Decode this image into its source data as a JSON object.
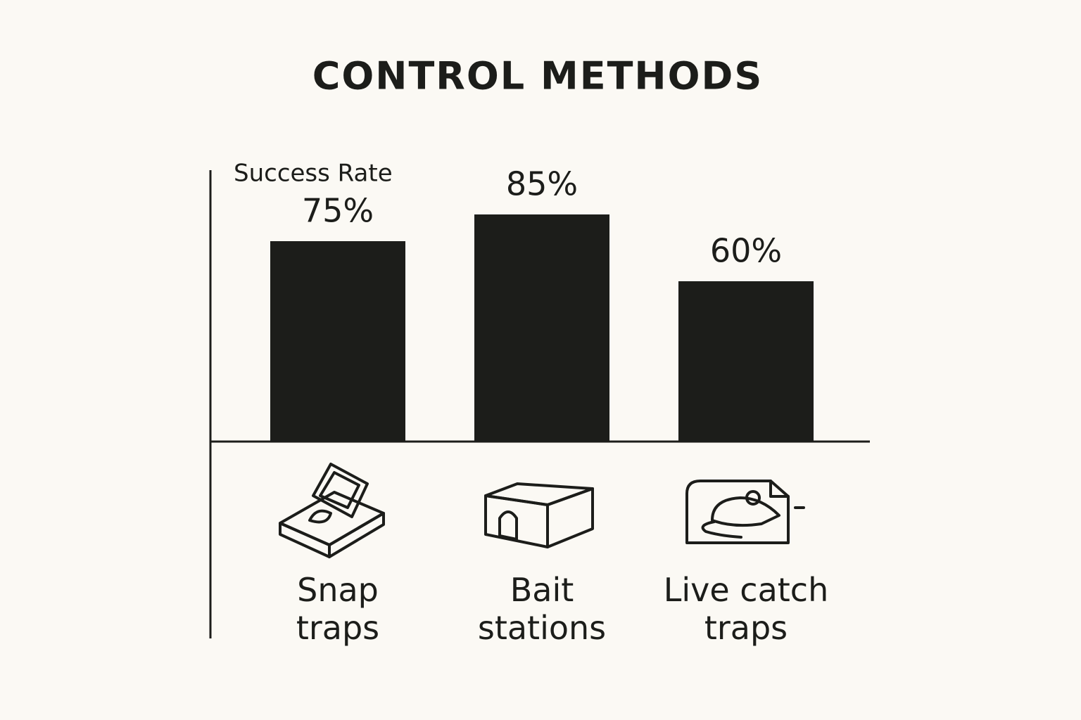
{
  "chart_data": {
    "type": "bar",
    "title": "CONTROL METHODS",
    "y_label": "Success Rate",
    "categories": [
      "Snap traps",
      "Bait stations",
      "Live catch traps"
    ],
    "values": [
      75,
      85,
      60
    ],
    "value_labels": [
      "75%",
      "85%",
      "60%"
    ],
    "color": "#1c1d1a",
    "ylim": [
      0,
      100
    ]
  }
}
